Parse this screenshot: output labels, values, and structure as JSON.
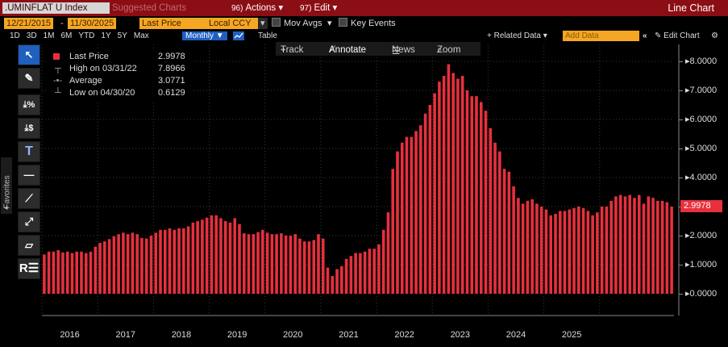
{
  "header": {
    "ticker": ".UMINFLAT U Index",
    "suggested_charts": "Suggested Charts",
    "actions_key": "96)",
    "actions_label": "Actions",
    "edit_key": "97)",
    "edit_label": "Edit",
    "view_title": "Line Chart"
  },
  "controls": {
    "start_date": "12/21/2015",
    "end_date": "11/30/2025",
    "field": "Last Price",
    "currency": "Local CCY",
    "mov_avgs": "Mov Avgs",
    "key_events": "Key Events",
    "periods": [
      "1D",
      "3D",
      "1M",
      "6M",
      "YTD",
      "1Y",
      "5Y",
      "Max"
    ],
    "frequency": "Monthly",
    "table": "Table",
    "related_data": "+ Related Data",
    "add_data_placeholder": "Add Data",
    "edit_chart": "Edit Chart"
  },
  "toolbar": {
    "track": "Track",
    "annotate": "Annotate",
    "news": "News",
    "zoom": "Zoom",
    "favorites": "Favorites"
  },
  "legend": {
    "last_price_label": "Last Price",
    "last_price_value": "2.9978",
    "high_label": "High on 03/31/22",
    "high_value": "7.8966",
    "average_label": "Average",
    "average_value": "3.0771",
    "low_label": "Low on 04/30/20",
    "low_value": "0.6129"
  },
  "colors": {
    "bar": "#e8303d",
    "header": "#8b0e14",
    "accent_orange": "#f5a623",
    "accent_blue": "#1f5fbf"
  },
  "chart_data": {
    "type": "bar",
    "title": "",
    "xlabel": "",
    "ylabel": "",
    "ylim": [
      -0.75,
      8.5
    ],
    "y_ticks": [
      "8.0000",
      "7.0000",
      "6.0000",
      "5.0000",
      "4.0000",
      "3.0000",
      "2.0000",
      "1.0000",
      "0.0000"
    ],
    "x_labels": [
      "2016",
      "2017",
      "2018",
      "2019",
      "2020",
      "2021",
      "2022",
      "2023",
      "2024",
      "2025"
    ],
    "last_value_label": "2.9978",
    "grid": true,
    "series": [
      {
        "values": [
          1.35,
          1.45,
          1.45,
          1.5,
          1.42,
          1.45,
          1.4,
          1.45,
          1.45,
          1.4,
          1.45,
          1.62,
          1.75,
          1.8,
          1.88,
          1.98,
          2.05,
          2.1,
          2.05,
          2.1,
          2.05,
          1.92,
          1.9,
          2.0,
          2.1,
          2.2,
          2.2,
          2.25,
          2.2,
          2.25,
          2.25,
          2.32,
          2.45,
          2.5,
          2.55,
          2.62,
          2.7,
          2.7,
          2.6,
          2.5,
          2.45,
          2.6,
          2.4,
          2.08,
          2.05,
          2.05,
          2.12,
          2.2,
          2.1,
          2.05,
          2.05,
          2.08,
          2.0,
          2.0,
          2.05,
          1.9,
          1.8,
          1.8,
          1.85,
          2.05,
          1.9,
          0.9,
          0.61,
          0.85,
          0.95,
          1.2,
          1.3,
          1.4,
          1.4,
          1.45,
          1.55,
          1.55,
          1.7,
          2.2,
          2.8,
          4.3,
          4.9,
          5.2,
          5.4,
          5.4,
          5.6,
          5.8,
          6.2,
          6.5,
          6.9,
          7.3,
          7.5,
          7.9,
          7.6,
          7.4,
          7.5,
          7.0,
          6.8,
          6.8,
          6.6,
          6.3,
          5.7,
          5.2,
          4.9,
          4.3,
          4.2,
          3.7,
          3.3,
          3.1,
          3.2,
          3.25,
          3.1,
          3.0,
          2.9,
          2.7,
          2.75,
          2.85,
          2.85,
          2.9,
          2.95,
          3.0,
          2.95,
          2.85,
          2.7,
          2.8,
          3.0,
          3.0,
          3.2,
          3.35,
          3.4,
          3.35,
          3.4,
          3.3,
          3.4,
          3.1,
          3.35,
          3.3,
          3.2,
          3.2,
          3.15,
          3.0
        ]
      }
    ]
  }
}
